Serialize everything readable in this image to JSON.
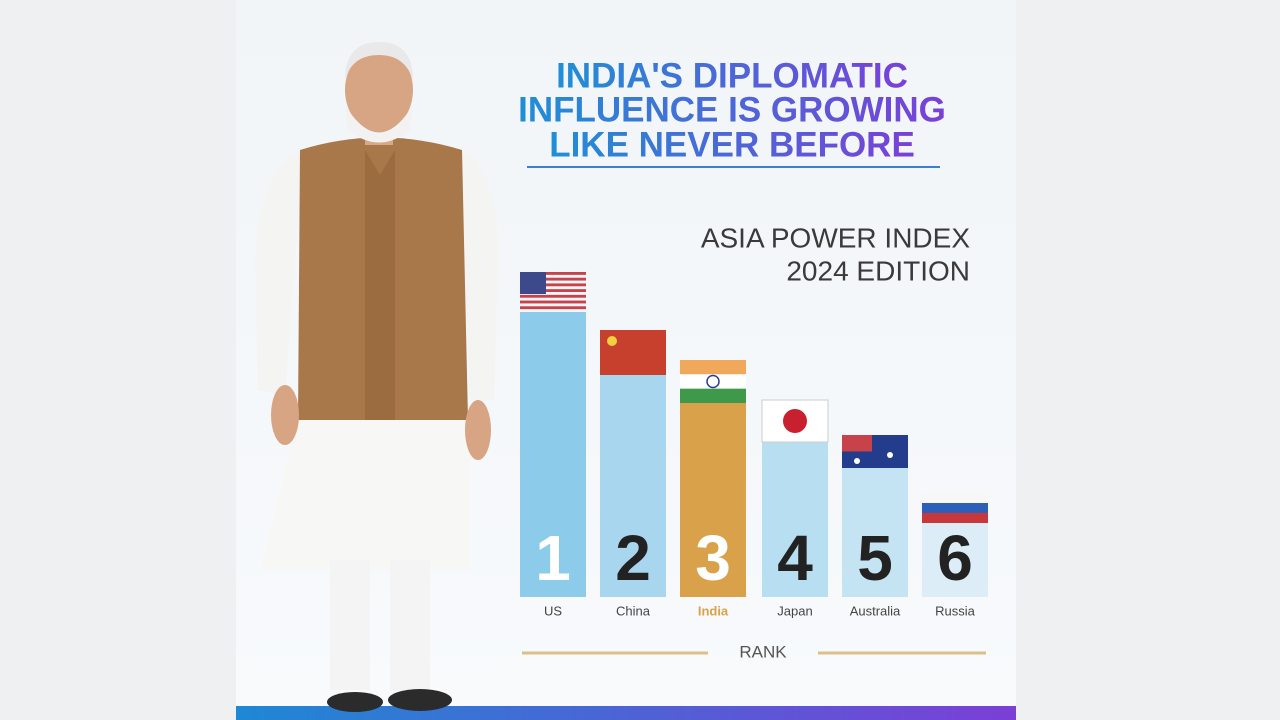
{
  "header": {
    "title_lines": [
      "INDIA'S DIPLOMATIC",
      "INFLUENCE IS GROWING",
      "LIKE NEVER BEFORE"
    ],
    "subtitle_lines": [
      "ASIA POWER INDEX",
      "2024 EDITION"
    ]
  },
  "ranking": {
    "items": [
      {
        "rank": 1,
        "country": "US"
      },
      {
        "rank": 2,
        "country": "China"
      },
      {
        "rank": 3,
        "country": "India"
      },
      {
        "rank": 4,
        "country": "Japan"
      },
      {
        "rank": 5,
        "country": "Australia"
      },
      {
        "rank": 6,
        "country": "Russia"
      }
    ],
    "axis_label": "RANK"
  }
}
